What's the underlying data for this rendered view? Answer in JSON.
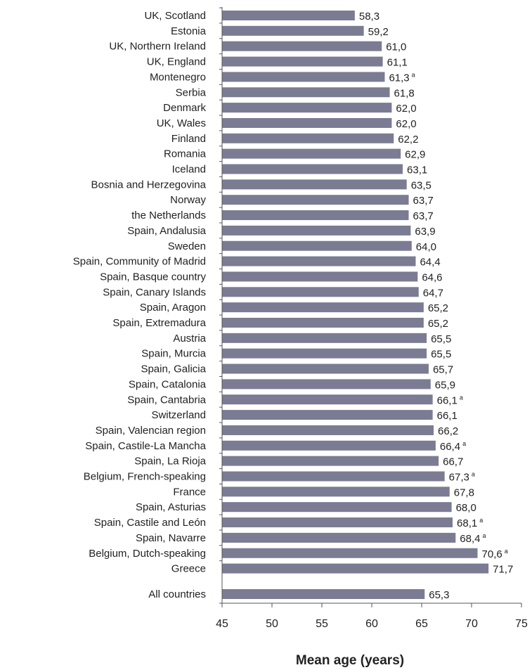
{
  "chart_data": {
    "type": "bar",
    "orientation": "horizontal",
    "xlabel": "Mean age (years)",
    "xlim": [
      45,
      75
    ],
    "xticks": [
      45,
      50,
      55,
      60,
      65,
      70,
      75
    ],
    "grid": false,
    "bar_color": "#7b7c93",
    "categories": [
      "UK, Scotland",
      "Estonia",
      "UK, Northern Ireland",
      "UK, England",
      "Montenegro",
      "Serbia",
      "Denmark",
      "UK, Wales",
      "Finland",
      "Romania",
      "Iceland",
      "Bosnia and Herzegovina",
      "Norway",
      "the Netherlands",
      "Spain, Andalusia",
      "Sweden",
      "Spain, Community of Madrid",
      "Spain, Basque country",
      "Spain, Canary Islands",
      "Spain, Aragon",
      "Spain, Extremadura",
      "Austria",
      "Spain, Murcia",
      "Spain, Galicia",
      "Spain, Catalonia",
      "Spain, Cantabria",
      "Switzerland",
      "Spain, Valencian region",
      "Spain, Castile-La Mancha",
      "Spain, La Rioja",
      "Belgium, French-speaking",
      "France",
      "Spain, Asturias",
      "Spain, Castile and León",
      "Spain, Navarre",
      "Belgium, Dutch-speaking",
      "Greece",
      "All countries"
    ],
    "values": [
      58.3,
      59.2,
      61.0,
      61.1,
      61.3,
      61.8,
      62.0,
      62.0,
      62.2,
      62.9,
      63.1,
      63.5,
      63.7,
      63.7,
      63.9,
      64.0,
      64.4,
      64.6,
      64.7,
      65.2,
      65.2,
      65.5,
      65.5,
      65.7,
      65.9,
      66.1,
      66.1,
      66.2,
      66.4,
      66.7,
      67.3,
      67.8,
      68.0,
      68.1,
      68.4,
      70.6,
      71.7,
      65.3
    ],
    "value_labels": [
      "58,3",
      "59,2",
      "61,0",
      "61,1",
      "61,3",
      "61,8",
      "62,0",
      "62,0",
      "62,2",
      "62,9",
      "63,1",
      "63,5",
      "63,7",
      "63,7",
      "63,9",
      "64,0",
      "64,4",
      "64,6",
      "64,7",
      "65,2",
      "65,2",
      "65,5",
      "65,5",
      "65,7",
      "65,9",
      "66,1",
      "66,1",
      "66,2",
      "66,4",
      "66,7",
      "67,3",
      "67,8",
      "68,0",
      "68,1",
      "68,4",
      "70,6",
      "71,7",
      "65,3"
    ],
    "footnote_marks": [
      "",
      "",
      "",
      "",
      "a",
      "",
      "",
      "",
      "",
      "",
      "",
      "",
      "",
      "",
      "",
      "",
      "",
      "",
      "",
      "",
      "",
      "",
      "",
      "",
      "",
      "a",
      "",
      "",
      "a",
      "",
      "a",
      "",
      "",
      "a",
      "a",
      "a",
      "",
      ""
    ]
  }
}
